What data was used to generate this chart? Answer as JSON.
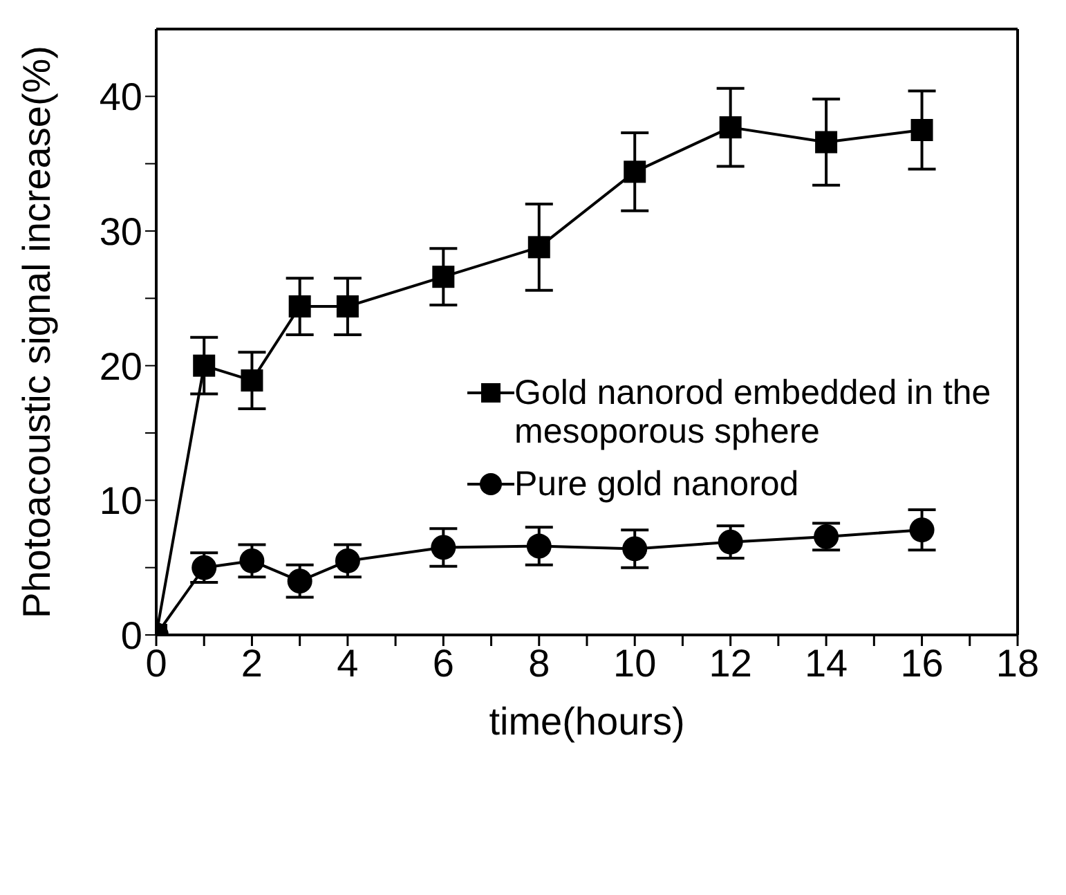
{
  "chart_data": {
    "type": "line",
    "xlabel": "time(hours)",
    "ylabel": "Photoacoustic signal increase(%)",
    "x": [
      0,
      1,
      2,
      3,
      4,
      6,
      8,
      10,
      12,
      14,
      16
    ],
    "xlim": [
      0,
      18
    ],
    "xticks": [
      0,
      {
        "value": 1,
        "label": null
      },
      2,
      {
        "value": 3,
        "label": null
      },
      4,
      {
        "value": 5,
        "label": null
      },
      6,
      {
        "value": 7,
        "label": null
      },
      8,
      {
        "value": 9,
        "label": null
      },
      10,
      {
        "value": 11,
        "label": null
      },
      12,
      {
        "value": 13,
        "label": null
      },
      14,
      {
        "value": 15,
        "label": null
      },
      16,
      {
        "value": 17,
        "label": null
      },
      18
    ],
    "ylim": [
      0,
      45
    ],
    "yticks": [
      0,
      {
        "value": 5,
        "label": null
      },
      10,
      {
        "value": 15,
        "label": null
      },
      20,
      {
        "value": 25,
        "label": null
      },
      30,
      {
        "value": 35,
        "label": null
      },
      40
    ],
    "grid": false,
    "legend": "center right",
    "line_style": "solid",
    "series": [
      {
        "name": "Gold nanorod embedded in the mesoporous sphere",
        "color": "#000000",
        "marker": "square",
        "values": [
          0,
          20,
          18.9,
          24.4,
          24.4,
          26.6,
          28.8,
          34.4,
          37.7,
          36.6,
          37.5
        ],
        "errors": [
          null,
          2.1,
          2.1,
          2.1,
          2.1,
          2.1,
          3.2,
          2.9,
          2.9,
          3.2,
          2.9
        ]
      },
      {
        "name": "Pure gold nanorod",
        "color": "#000000",
        "marker": "circle",
        "values": [
          0,
          5.0,
          5.5,
          4.0,
          5.5,
          6.5,
          6.6,
          6.4,
          6.9,
          7.3,
          7.8
        ],
        "errors": [
          null,
          1.1,
          1.2,
          1.2,
          1.2,
          1.4,
          1.4,
          1.4,
          1.2,
          1.0,
          1.5
        ]
      }
    ]
  }
}
